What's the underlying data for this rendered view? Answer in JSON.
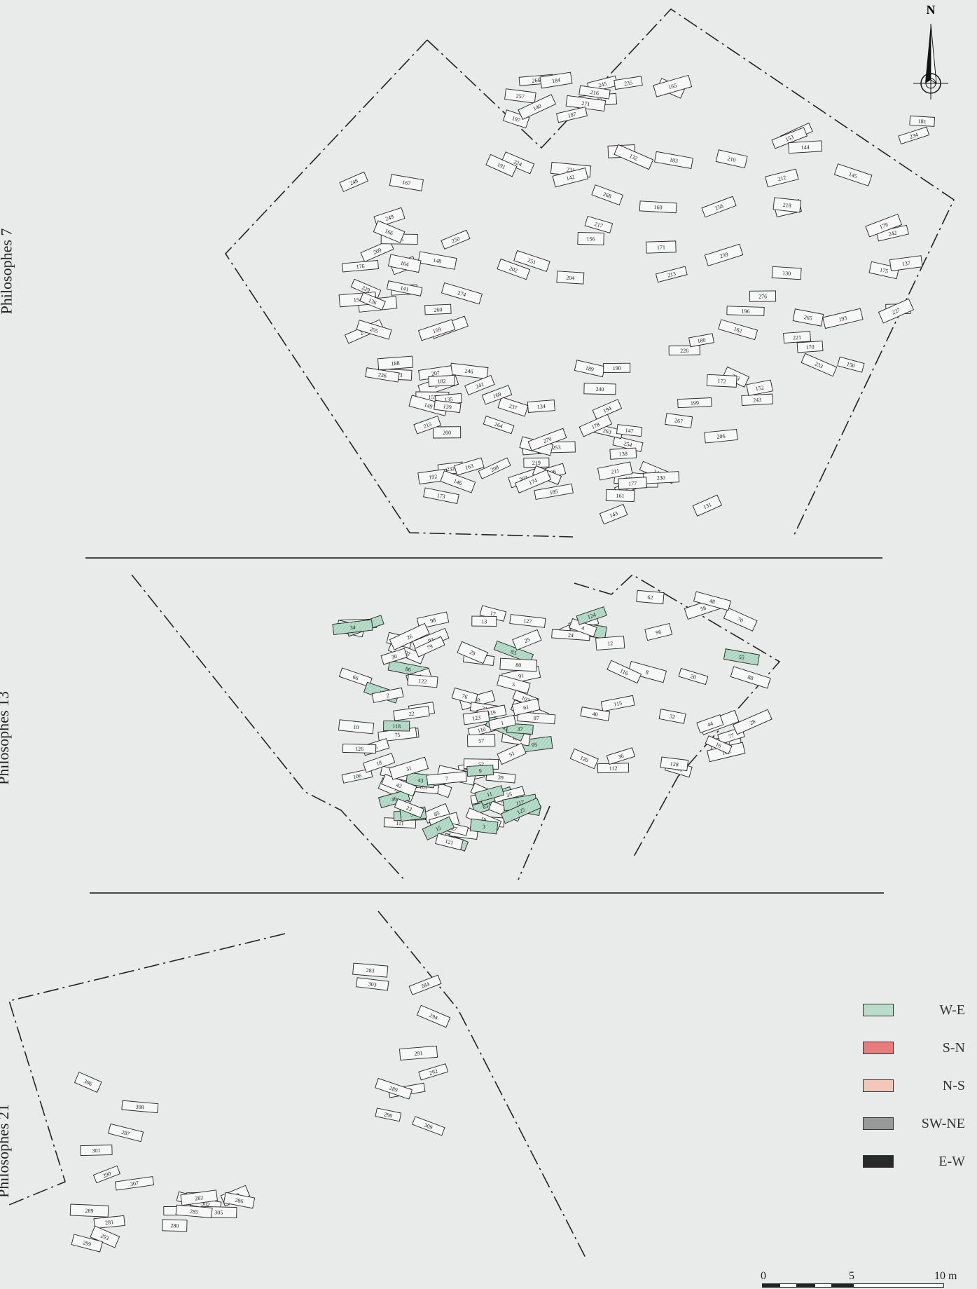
{
  "sections": [
    {
      "label": "Philosophes 7"
    },
    {
      "label": "Philosophes 13"
    },
    {
      "label": "Philosophes 21"
    }
  ],
  "north": {
    "letter": "N"
  },
  "legend": [
    {
      "label": "W-E",
      "color": "#a9d3bf",
      "pattern": "hatch"
    },
    {
      "label": "S-N",
      "color": "#e87c7c",
      "pattern": "solid"
    },
    {
      "label": "N-S",
      "color": "#f0b7a6",
      "pattern": "hatch"
    },
    {
      "label": "SW-NE",
      "color": "#8d8d8d",
      "pattern": "hatch"
    },
    {
      "label": "E-W",
      "color": "#2a2a2a",
      "pattern": "solid"
    }
  ],
  "scale": {
    "ticks": [
      "0",
      "5",
      "10 m"
    ]
  },
  "graves": {
    "p7": [
      "278",
      "279",
      "277",
      "276",
      "272",
      "273",
      "275",
      "254",
      "259",
      "258",
      "260",
      "257",
      "243",
      "242",
      "237",
      "246",
      "245",
      "247",
      "256",
      "253",
      "252",
      "251",
      "238",
      "239",
      "241",
      "249",
      "266",
      "263",
      "265",
      "264",
      "248",
      "268",
      "267",
      "233",
      "269",
      "274",
      "271",
      "230",
      "255",
      "228",
      "229",
      "216",
      "220",
      "221",
      "219",
      "209",
      "202",
      "194",
      "196",
      "200",
      "195",
      "213",
      "211",
      "218",
      "203",
      "207",
      "217",
      "206",
      "210",
      "270",
      "250",
      "231",
      "226",
      "212",
      "208",
      "214",
      "224",
      "223",
      "227",
      "232",
      "236",
      "235",
      "240",
      "234",
      "215",
      "225",
      "171",
      "177",
      "170",
      "173",
      "176",
      "184",
      "178",
      "179",
      "185",
      "188",
      "204",
      "199",
      "198",
      "186",
      "205",
      "197",
      "180",
      "181",
      "169",
      "167",
      "183",
      "189",
      "193",
      "192",
      "166",
      "191",
      "172",
      "175",
      "174",
      "182",
      "187",
      "190",
      "153",
      "155",
      "154",
      "156",
      "147",
      "145",
      "146",
      "148",
      "151",
      "152",
      "150",
      "149",
      "141",
      "140",
      "138",
      "137",
      "135",
      "136",
      "142",
      "143",
      "144",
      "134",
      "133",
      "132",
      "131",
      "130",
      "139",
      "159",
      "160",
      "161",
      "162",
      "163",
      "164",
      "165"
    ],
    "p13": [
      "113",
      "114",
      "115",
      "111",
      "109",
      "110",
      "112",
      "92",
      "93",
      "95",
      "96",
      "97",
      "98",
      "99",
      "100",
      "101",
      "102",
      "103",
      "104",
      "105",
      "106",
      "107",
      "108",
      "81",
      "82",
      "83",
      "84",
      "85",
      "86",
      "87",
      "88",
      "89",
      "90",
      "91",
      "73",
      "74",
      "75",
      "76",
      "77",
      "78",
      "79",
      "80",
      "70",
      "69",
      "66",
      "67",
      "58",
      "59",
      "60",
      "61",
      "62",
      "63",
      "64",
      "65",
      "68",
      "71",
      "72",
      "57",
      "55",
      "54",
      "53",
      "52",
      "56",
      "46",
      "47",
      "45",
      "48",
      "49",
      "50",
      "51",
      "44",
      "43",
      "42",
      "41",
      "40",
      "39",
      "38",
      "37",
      "36",
      "35",
      "34",
      "33",
      "32",
      "31",
      "30",
      "29",
      "28",
      "27",
      "26",
      "25",
      "24",
      "23",
      "22",
      "21",
      "20",
      "19",
      "18",
      "17",
      "16",
      "15",
      "14",
      "13",
      "12",
      "11",
      "10",
      "9",
      "8",
      "7",
      "6",
      "5",
      "4",
      "3",
      "2",
      "1",
      "116",
      "117",
      "118",
      "119",
      "120",
      "121",
      "122",
      "123",
      "124",
      "125",
      "126",
      "127",
      "128"
    ],
    "p21": [
      "283",
      "281",
      "280",
      "303",
      "301",
      "304",
      "296",
      "306",
      "295",
      "294",
      "293",
      "302",
      "291",
      "289",
      "305",
      "292",
      "299",
      "300",
      "297",
      "287",
      "282",
      "309",
      "308",
      "288",
      "284",
      "307",
      "285",
      "289",
      "290",
      "286"
    ]
  }
}
